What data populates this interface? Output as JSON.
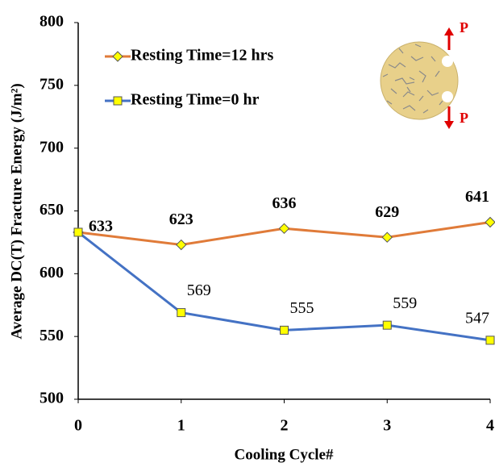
{
  "chart_data": {
    "type": "line",
    "x_label": "Cooling Cycle#",
    "y_label": "Average DC(T) Fracture Energy (J/m²)",
    "x": [
      0,
      1,
      2,
      3,
      4
    ],
    "xlim": [
      0,
      4
    ],
    "xticks": [
      0,
      1,
      2,
      3,
      4
    ],
    "ylim": [
      500,
      800
    ],
    "yticks": [
      500,
      550,
      600,
      650,
      700,
      750,
      800
    ],
    "grid": false,
    "legend": "upper left",
    "series": [
      {
        "name": "Resting Time=12 hrs",
        "color": "#e07b39",
        "marker": "diamond",
        "marker_color": "#ffff00",
        "values": [
          633,
          623,
          636,
          629,
          641
        ]
      },
      {
        "name": "Resting Time=0 hr",
        "color": "#4472c4",
        "marker": "square",
        "marker_color": "#ffff00",
        "values": [
          633,
          569,
          555,
          559,
          547
        ],
        "value_labels": [
          null,
          "569",
          "555",
          "559",
          "547"
        ]
      }
    ],
    "inset": {
      "labels": [
        "P",
        "P"
      ]
    }
  }
}
